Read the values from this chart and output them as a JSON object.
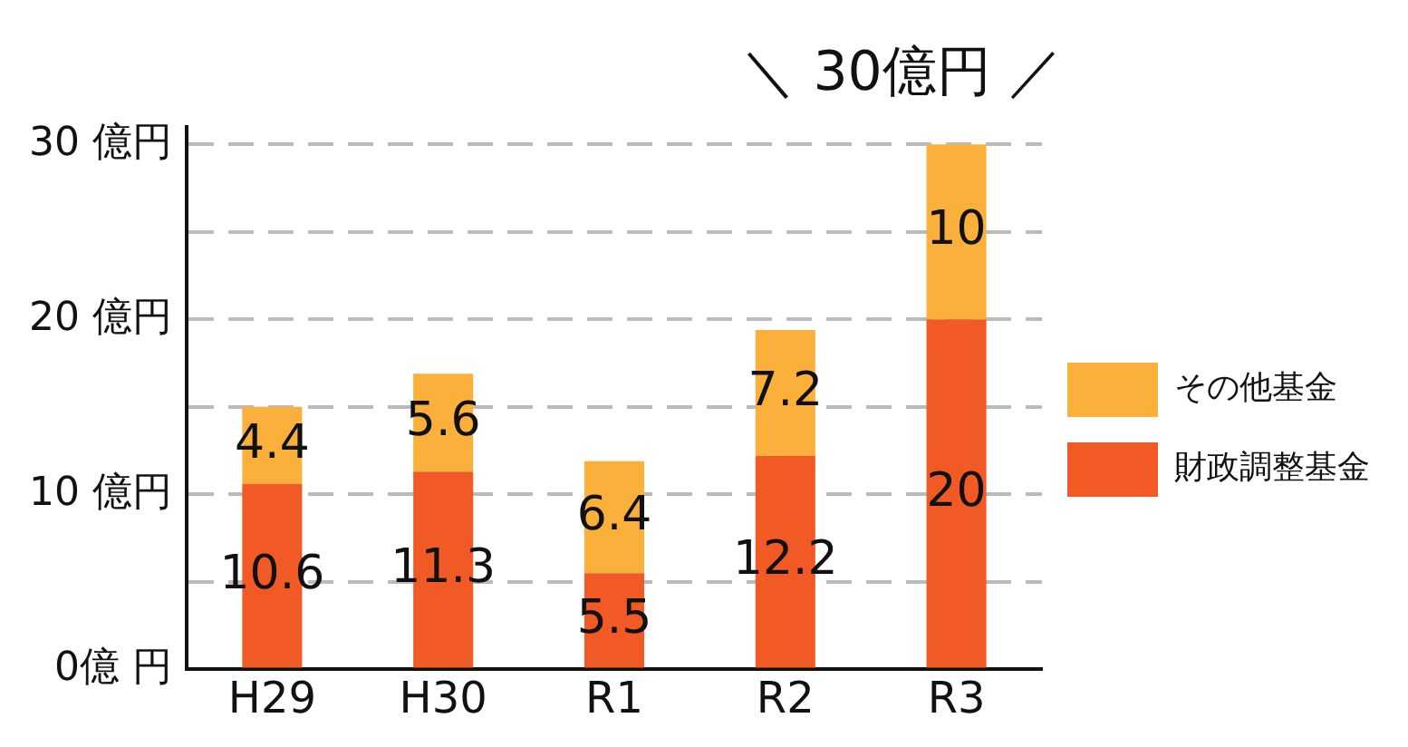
{
  "chart_data": {
    "type": "bar",
    "stacked": true,
    "categories": [
      "H29",
      "H30",
      "R1",
      "R2",
      "R3"
    ],
    "series": [
      {
        "name": "財政調整基金",
        "color": "#f15a24",
        "values": [
          10.6,
          11.3,
          5.5,
          12.2,
          20
        ]
      },
      {
        "name": "その他基金",
        "color": "#fbb03b",
        "values": [
          4.4,
          5.6,
          6.4,
          7.2,
          10
        ]
      }
    ],
    "ylim": [
      0,
      31
    ],
    "yticks": [
      {
        "value": 0,
        "label": "0億 円"
      },
      {
        "value": 5,
        "label": null
      },
      {
        "value": 10,
        "label": "10 億円"
      },
      {
        "value": 15,
        "label": null
      },
      {
        "value": 20,
        "label": "20 億円"
      },
      {
        "value": 25,
        "label": null
      },
      {
        "value": 30,
        "label": "30 億円"
      }
    ],
    "grid": "y",
    "line_style": "dashed",
    "legend": "right",
    "data_labels": true,
    "annotations": [
      {
        "text": "＼ 30億円 ／",
        "x": "R3",
        "y": 30
      }
    ]
  }
}
